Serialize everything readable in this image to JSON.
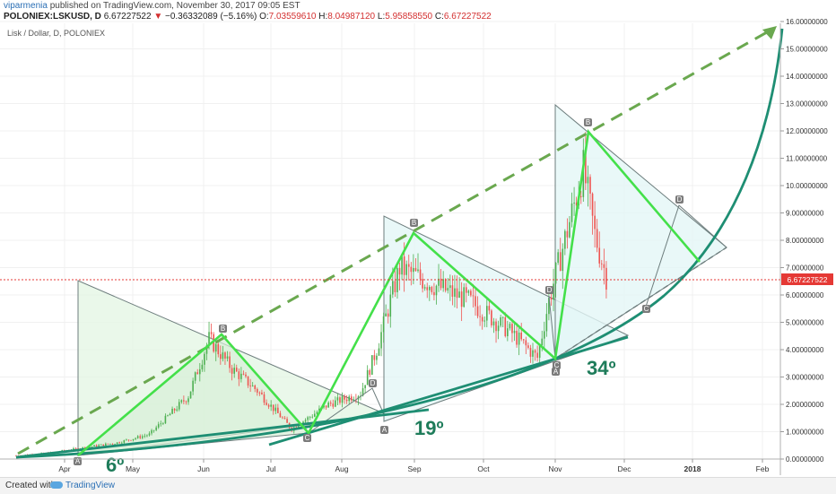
{
  "header": {
    "author": "viparmenia",
    "published": "published on TradingView.com, November 30, 2017 09:05 EST",
    "symbol": "POLONIEX:LSKUSD, D",
    "last": "6.67227522",
    "change_arrow": "▼",
    "change": "−0.36332089 (−5.16%)",
    "o_label": "O:",
    "o": "7.03559610",
    "h_label": "H:",
    "h": "8.04987120",
    "l_label": "L:",
    "l": "5.95858550",
    "c_label": "C:",
    "c": "6.67227522"
  },
  "footer": {
    "created_with": "Created with",
    "brand": "TradingView"
  },
  "chart_data": {
    "type": "candlestick",
    "title": "Lisk / Dollar, D, POLONIEX",
    "x_ticks": [
      "Apr",
      "May",
      "Jun",
      "Jul",
      "Aug",
      "Sep",
      "Oct",
      "Nov",
      "Dec",
      "2018",
      "Feb"
    ],
    "y_ticks": [
      "0.00000000",
      "1.00000000",
      "2.00000000",
      "3.00000000",
      "4.00000000",
      "5.00000000",
      "6.00000000",
      "7.00000000",
      "8.00000000",
      "9.00000000",
      "10.00000000",
      "11.00000000",
      "12.00000000",
      "13.00000000",
      "14.00000000",
      "15.00000000",
      "16.00000000"
    ],
    "ylim": [
      0,
      16
    ],
    "last_price_label": "6.67227522",
    "colors": {
      "up": "#4caf50",
      "down": "#ef5350",
      "zigzag": "#44e04a",
      "trend": "#1e8e73",
      "dashed": "#6aa84f",
      "price_line": "#e53935"
    },
    "series_approx": [
      [
        "2017-03-18",
        0.12
      ],
      [
        "2017-04-01",
        0.2
      ],
      [
        "2017-04-15",
        0.4
      ],
      [
        "2017-05-01",
        0.6
      ],
      [
        "2017-05-15",
        0.9
      ],
      [
        "2017-06-01",
        2.3
      ],
      [
        "2017-06-10",
        4.4
      ],
      [
        "2017-06-20",
        3.3
      ],
      [
        "2017-07-01",
        2.5
      ],
      [
        "2017-07-16",
        1.1
      ],
      [
        "2017-08-01",
        2.0
      ],
      [
        "2017-08-15",
        2.4
      ],
      [
        "2017-08-22",
        4.0
      ],
      [
        "2017-09-01",
        7.0
      ],
      [
        "2017-09-15",
        6.4
      ],
      [
        "2017-10-01",
        5.8
      ],
      [
        "2017-10-20",
        4.6
      ],
      [
        "2017-10-31",
        3.7
      ],
      [
        "2017-11-05",
        5.8
      ],
      [
        "2017-11-15",
        9.0
      ],
      [
        "2017-11-20",
        10.6
      ],
      [
        "2017-11-25",
        8.2
      ],
      [
        "2017-11-30",
        6.67
      ]
    ],
    "patterns": [
      {
        "points": [
          "A",
          "B",
          "C",
          "D"
        ],
        "angle_label": "6º"
      },
      {
        "points": [
          "A",
          "B",
          "C",
          "D"
        ],
        "angle_label": "19º"
      },
      {
        "points": [
          "A",
          "B",
          "C",
          "D"
        ],
        "angle_label": "34º"
      }
    ]
  }
}
